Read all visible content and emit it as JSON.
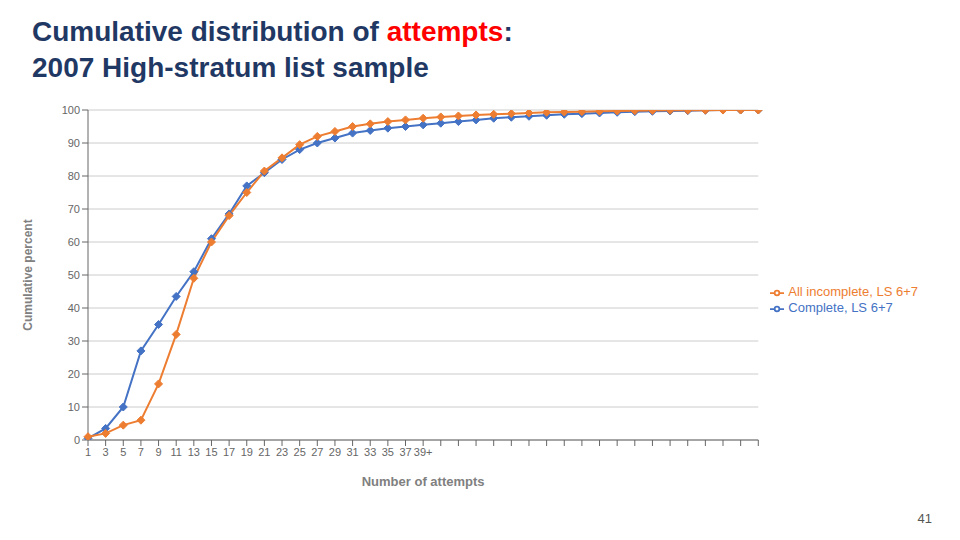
{
  "chart_data": {
    "type": "line",
    "title": "Cumulative distribution of attempts:",
    "title_color": "#1F3864",
    "title_highlight": "attempts",
    "title_highlight_color": "#FF0000",
    "subtitle": "2007 High-stratum list sample",
    "x_label": "Number of attempts",
    "y_label": "Cumulative percent",
    "annotations": [
      "41"
    ],
    "categories": [
      "1",
      "3",
      "5",
      "7",
      "9",
      "11",
      "13",
      "15",
      "17",
      "19",
      "21",
      "23",
      "25",
      "27",
      "29",
      "31",
      "33",
      "35",
      "37",
      "39+",
      null,
      null,
      null,
      null,
      null,
      null,
      null,
      null,
      null,
      null,
      null,
      null,
      null,
      null,
      null,
      null,
      null,
      null,
      null
    ],
    "series": [
      {
        "name": "Complete, LS 6+7",
        "color": "#4472C4",
        "marker": "diamond",
        "values": [
          0.5,
          3.5,
          10.0,
          27.0,
          35.0,
          43.5,
          51.0,
          61.0,
          68.5,
          77.0,
          81.0,
          85.0,
          88.0,
          90.0,
          91.5,
          93.0,
          93.8,
          94.5,
          95.0,
          95.5,
          96.0,
          96.5,
          97.0,
          97.5,
          97.8,
          98.1,
          98.4,
          98.7,
          98.9,
          99.1,
          99.3,
          99.5,
          99.6,
          99.7,
          99.8,
          99.9,
          100.0,
          100.0,
          100.0
        ]
      },
      {
        "name": "All incomplete, LS 6+7",
        "color": "#ED7D31",
        "marker": "diamond",
        "values": [
          1.0,
          2.0,
          4.5,
          6.0,
          17.0,
          32.0,
          49.0,
          60.0,
          68.0,
          75.0,
          81.5,
          85.5,
          89.5,
          92.0,
          93.5,
          95.0,
          95.8,
          96.5,
          97.0,
          97.5,
          97.9,
          98.2,
          98.5,
          98.7,
          98.9,
          99.1,
          99.3,
          99.4,
          99.5,
          99.6,
          99.7,
          99.8,
          99.85,
          99.9,
          99.93,
          99.96,
          99.98,
          99.99,
          100.0
        ]
      }
    ],
    "ylim": [
      0,
      100
    ],
    "yticks": [
      0,
      10,
      20,
      30,
      40,
      50,
      60,
      70,
      80,
      90,
      100
    ],
    "grid": true,
    "legend": "right"
  }
}
